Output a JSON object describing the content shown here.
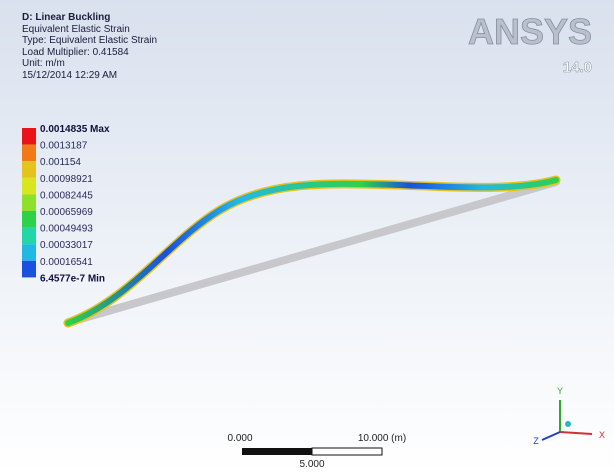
{
  "header": {
    "lines": [
      "D: Linear Buckling",
      "Equivalent Elastic Strain",
      "Type: Equivalent Elastic Strain",
      "Load Multiplier: 0.41584",
      "Unit: m/m",
      "15/12/2014 12:29 AM"
    ]
  },
  "logo": {
    "name": "ANSYS",
    "version": "14.0"
  },
  "legend": {
    "labels": [
      "0.0014835 Max",
      "0.0013187",
      "0.001154",
      "0.00098921",
      "0.00082445",
      "0.00065969",
      "0.00049493",
      "0.00033017",
      "0.00016541",
      "6.4577e-7 Min"
    ],
    "colors": [
      "#e8141a",
      "#f07a18",
      "#e6c21c",
      "#d8e61e",
      "#8fe02a",
      "#2ed24a",
      "#22d6a8",
      "#22b8e6",
      "#1a50e0"
    ]
  },
  "scale": {
    "start": "0.000",
    "end": "10.000 (m)",
    "mid": "5.000"
  },
  "triad": {
    "y": "Y",
    "z": "Z",
    "x": "X"
  }
}
